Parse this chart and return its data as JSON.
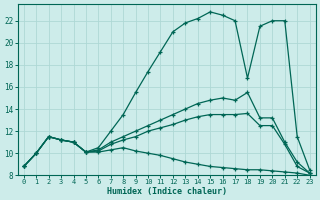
{
  "xlabel": "Humidex (Indice chaleur)",
  "background_color": "#cdecea",
  "grid_color": "#aed8d5",
  "line_color": "#006655",
  "xlim": [
    -0.5,
    23.5
  ],
  "ylim": [
    8,
    23.5
  ],
  "yticks": [
    8,
    10,
    12,
    14,
    16,
    18,
    20,
    22
  ],
  "xticks": [
    0,
    1,
    2,
    3,
    4,
    5,
    6,
    7,
    8,
    9,
    10,
    11,
    12,
    13,
    14,
    15,
    16,
    17,
    18,
    19,
    20,
    21,
    22,
    23
  ],
  "series": [
    [
      8.8,
      10.0,
      11.5,
      11.2,
      11.0,
      10.1,
      10.5,
      12.0,
      13.5,
      15.5,
      17.4,
      19.2,
      21.0,
      21.8,
      22.2,
      22.8,
      22.5,
      22.0,
      16.8,
      21.5,
      22.0,
      22.0,
      11.5,
      8.5
    ],
    [
      8.8,
      10.0,
      11.5,
      11.2,
      11.0,
      10.1,
      10.3,
      11.0,
      11.5,
      12.0,
      12.5,
      13.0,
      13.5,
      14.0,
      14.5,
      14.8,
      15.0,
      14.8,
      15.5,
      13.2,
      13.2,
      11.0,
      9.2,
      8.2
    ],
    [
      8.8,
      10.0,
      11.5,
      11.2,
      11.0,
      10.1,
      10.2,
      10.8,
      11.2,
      11.5,
      12.0,
      12.3,
      12.6,
      13.0,
      13.3,
      13.5,
      13.5,
      13.5,
      13.6,
      12.5,
      12.5,
      10.8,
      8.8,
      8.2
    ],
    [
      8.8,
      10.0,
      11.5,
      11.2,
      11.0,
      10.1,
      10.1,
      10.3,
      10.5,
      10.2,
      10.0,
      9.8,
      9.5,
      9.2,
      9.0,
      8.8,
      8.7,
      8.6,
      8.5,
      8.5,
      8.4,
      8.3,
      8.2,
      8.0
    ]
  ]
}
